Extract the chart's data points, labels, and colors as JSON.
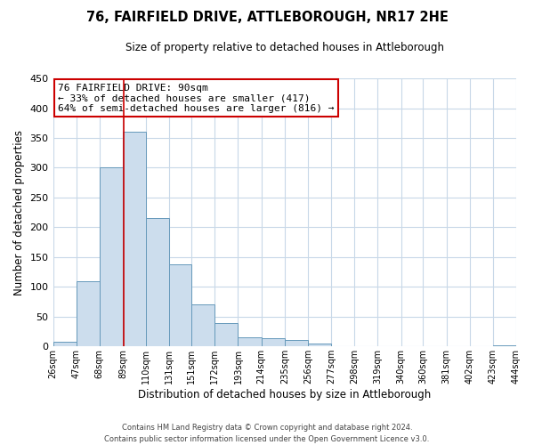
{
  "title": "76, FAIRFIELD DRIVE, ATTLEBOROUGH, NR17 2HE",
  "subtitle": "Size of property relative to detached houses in Attleborough",
  "xlabel": "Distribution of detached houses by size in Attleborough",
  "ylabel": "Number of detached properties",
  "bar_color": "#ccdded",
  "bar_edge_color": "#6699bb",
  "vline_x": 90,
  "vline_color": "#cc0000",
  "bin_edges": [
    26,
    47,
    68,
    89,
    110,
    131,
    151,
    172,
    193,
    214,
    235,
    256,
    277,
    298,
    319,
    340,
    360,
    381,
    402,
    423,
    444
  ],
  "bin_labels": [
    "26sqm",
    "47sqm",
    "68sqm",
    "89sqm",
    "110sqm",
    "131sqm",
    "151sqm",
    "172sqm",
    "193sqm",
    "214sqm",
    "235sqm",
    "256sqm",
    "277sqm",
    "298sqm",
    "319sqm",
    "340sqm",
    "360sqm",
    "381sqm",
    "402sqm",
    "423sqm",
    "444sqm"
  ],
  "counts": [
    8,
    110,
    300,
    360,
    215,
    137,
    70,
    39,
    15,
    13,
    10,
    5,
    0,
    0,
    0,
    0,
    0,
    0,
    0,
    2
  ],
  "ylim": [
    0,
    450
  ],
  "yticks": [
    0,
    50,
    100,
    150,
    200,
    250,
    300,
    350,
    400,
    450
  ],
  "annotation_title": "76 FAIRFIELD DRIVE: 90sqm",
  "annotation_line1": "← 33% of detached houses are smaller (417)",
  "annotation_line2": "64% of semi-detached houses are larger (816) →",
  "annotation_box_color": "#ffffff",
  "annotation_box_edge_color": "#cc0000",
  "footer_line1": "Contains HM Land Registry data © Crown copyright and database right 2024.",
  "footer_line2": "Contains public sector information licensed under the Open Government Licence v3.0.",
  "bg_color": "#ffffff",
  "grid_color": "#c8d8e8"
}
